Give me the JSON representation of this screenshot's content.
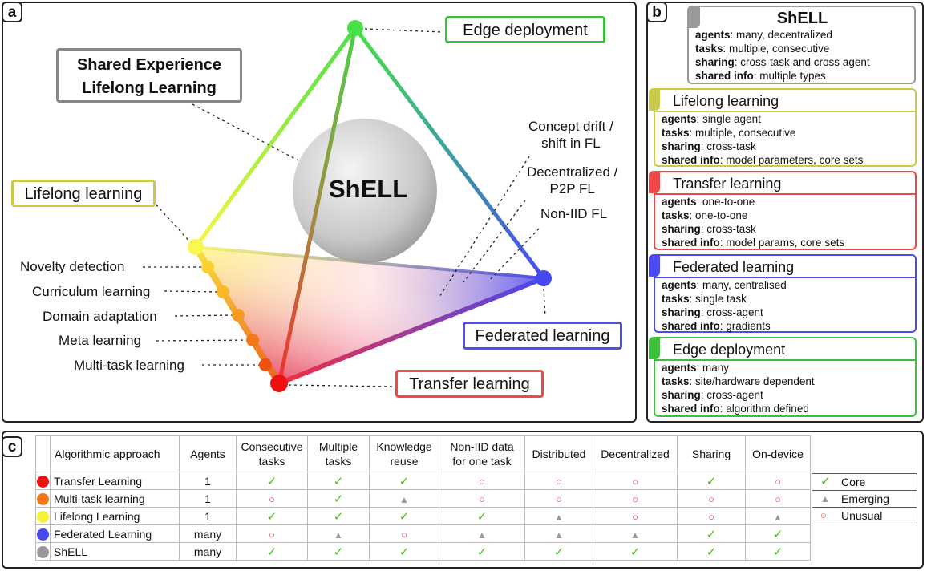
{
  "panel_a": {
    "tag": "a",
    "shell_box": {
      "line1": "Shared Experience",
      "line2": "Lifelong Learning"
    },
    "sphere_label": "ShELL",
    "edge": "Edge deployment",
    "lifelong": "Lifelong learning",
    "federated": "Federated learning",
    "transfer": "Transfer learning",
    "fl_variants": [
      {
        "line1": "Concept drift /",
        "line2": "shift in FL"
      },
      {
        "line1": "Decentralized /",
        "line2": "P2P FL"
      },
      {
        "line1": "Non-IID FL",
        "line2": ""
      }
    ],
    "edge_methods": [
      "Novelty detection",
      "Curriculum learning",
      "Domain adaptation",
      "Meta learning",
      "Multi-task learning"
    ]
  },
  "panel_b": {
    "tag": "b",
    "cards": [
      {
        "title": "ShELL",
        "color": "#999999",
        "rows": [
          [
            "agents",
            ": many, decentralized"
          ],
          [
            "tasks",
            ": multiple, consecutive"
          ],
          [
            "sharing",
            ":  cross-task and cross agent"
          ],
          [
            "shared info",
            ": multiple types"
          ]
        ]
      },
      {
        "title": "Lifelong learning",
        "color": "#c9c94a",
        "rows": [
          [
            "agents",
            ": single agent"
          ],
          [
            "tasks",
            ": multiple, consecutive"
          ],
          [
            "sharing",
            ":  cross-task"
          ],
          [
            "shared info",
            ": model parameters, core sets"
          ]
        ]
      },
      {
        "title": "Transfer learning",
        "color": "#f04848",
        "rows": [
          [
            "agents",
            ": one-to-one"
          ],
          [
            "tasks",
            ": one-to-one"
          ],
          [
            "sharing",
            ": cross-task"
          ],
          [
            "shared info",
            ": model  params, core sets"
          ]
        ]
      },
      {
        "title": "Federated learning",
        "color": "#4a4af0",
        "rows": [
          [
            "agents",
            ": many, centralised"
          ],
          [
            "tasks",
            ": single task"
          ],
          [
            "sharing",
            ": cross-agent"
          ],
          [
            "shared info",
            ": gradients"
          ]
        ]
      },
      {
        "title": "Edge deployment",
        "color": "#3cc03c",
        "rows": [
          [
            "agents",
            ": many"
          ],
          [
            "tasks",
            ": site/hardware dependent"
          ],
          [
            "sharing",
            ": cross-agent"
          ],
          [
            "shared info",
            ": algorithm defined"
          ]
        ]
      }
    ]
  },
  "panel_c": {
    "tag": "c",
    "headers": [
      "Algorithmic approach",
      "Agents",
      "Consecutive\ntasks",
      "Multiple\ntasks",
      "Knowledge\nreuse",
      "Non-IID data\nfor one task",
      "Distributed",
      "Decentralized",
      "Sharing",
      "On-device"
    ],
    "rows": [
      {
        "name": "Transfer Learning",
        "color": "#ee1111",
        "agents": "1",
        "cells": [
          "C",
          "C",
          "C",
          "U",
          "U",
          "U",
          "C",
          "U"
        ]
      },
      {
        "name": "Multi-task learning",
        "color": "#f07818",
        "agents": "1",
        "cells": [
          "U",
          "C",
          "E",
          "U",
          "U",
          "U",
          "U",
          "U"
        ]
      },
      {
        "name": "Lifelong Learning",
        "color": "#f5f03c",
        "agents": "1",
        "cells": [
          "C",
          "C",
          "C",
          "C",
          "E",
          "U",
          "U",
          "E"
        ]
      },
      {
        "name": "Federated Learning",
        "color": "#4848f0",
        "agents": "many",
        "cells": [
          "U",
          "E",
          "U",
          "E",
          "E",
          "E",
          "C",
          "C"
        ]
      },
      {
        "name": "ShELL",
        "color": "#999999",
        "agents": "many",
        "cells": [
          "C",
          "C",
          "C",
          "C",
          "C",
          "C",
          "C",
          "C"
        ]
      }
    ],
    "symbols": {
      "C": "✓",
      "E": "▲",
      "U": "○"
    },
    "legend": [
      {
        "key": "C",
        "label": "Core"
      },
      {
        "key": "E",
        "label": "Emerging"
      },
      {
        "key": "U",
        "label": "Unusual"
      }
    ]
  }
}
